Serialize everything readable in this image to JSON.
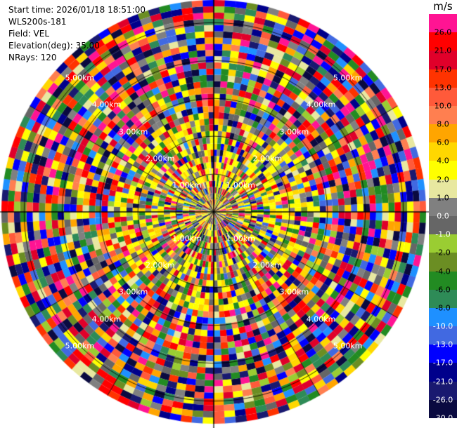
{
  "info": {
    "start_time": "Start time: 2026/01/18 18:51:00",
    "instrument": "WLS200s-181",
    "field": "Field: VEL",
    "elevation": "Elevation(deg): 35.00",
    "nrays": "NRays: 120"
  },
  "chart_data": {
    "type": "heatmap",
    "projection": "polar-ppi",
    "field": "VEL",
    "elevation_deg": 35.0,
    "n_rays": 120,
    "range_rings_km": [
      1.0,
      2.0,
      3.0,
      4.0,
      5.0
    ],
    "ring_labels": [
      "1.00km",
      "2.00km",
      "3.00km",
      "4.00km",
      "5.00km"
    ],
    "grid": true,
    "colorbar": {
      "unit": "m/s",
      "tick_labels": [
        "26.0",
        "21.0",
        "17.0",
        "13.0",
        "10.0",
        "8.0",
        "6.0",
        "4.0",
        "2.0",
        "1.0",
        "0.0",
        "-1.0",
        "-2.0",
        "-4.0",
        "-6.0",
        "-8.0",
        "-10.0",
        "-13.0",
        "-17.0",
        "-21.0",
        "-26.0",
        "-30.0"
      ],
      "colors": [
        "#ff1493",
        "#ff0000",
        "#e0002a",
        "#ff3300",
        "#ff5a3a",
        "#ff7f50",
        "#ffa500",
        "#ffd700",
        "#ffff00",
        "#e8e8a0",
        "#808080",
        "#666666",
        "#9acd32",
        "#6b8e23",
        "#228b22",
        "#2e8b57",
        "#1e90ff",
        "#4169e1",
        "#0000ff",
        "#00008b",
        "#191970",
        "#0a0a40"
      ]
    }
  }
}
